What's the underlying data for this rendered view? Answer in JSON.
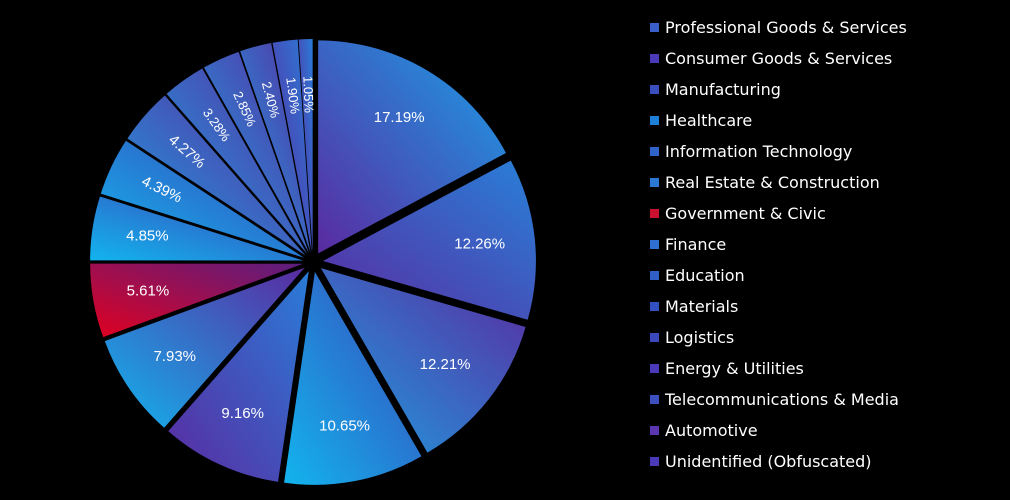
{
  "chart_data": {
    "type": "pie",
    "title": "",
    "legend_position": "right",
    "slice_labels_shown_as": "percent",
    "categories": [
      "Professional Goods & Services",
      "Consumer Goods & Services",
      "Manufacturing",
      "Healthcare",
      "Information Technology",
      "Real Estate & Construction",
      "Government & Civic",
      "Finance",
      "Education",
      "Materials",
      "Logistics",
      "Energy & Utilities",
      "Telecommunications & Media",
      "Automotive",
      "Unidentified (Obfuscated)"
    ],
    "values": [
      17.19,
      12.26,
      12.21,
      10.65,
      9.16,
      7.93,
      5.61,
      4.85,
      4.39,
      4.27,
      3.28,
      2.85,
      2.4,
      1.9,
      1.05
    ],
    "labels": [
      "17.19%",
      "12.26%",
      "12.21%",
      "10.65%",
      "9.16%",
      "7.93%",
      "5.61%",
      "4.85%",
      "4.39%",
      "4.27%",
      "3.28%",
      "2.85%",
      "2.40%",
      "1.90%",
      "1.05%"
    ],
    "colors": [
      "#3a5fc8",
      "#4a3ab8",
      "#3a4fbf",
      "#1e7fd8",
      "#2f63c9",
      "#2b78d2",
      "#cc1030",
      "#2f6fcf",
      "#2f5fc6",
      "#3350c0",
      "#3a48bc",
      "#4a3aba",
      "#3b4fbe",
      "#5a36b0",
      "#4a3ab8"
    ],
    "gradient_start_colors": [
      "#5a2aa0",
      "#5a2aa0",
      "#1e9fe0",
      "#12b4ee",
      "#5a2aa0",
      "#12b4ee",
      "#e00020",
      "#12b4ee",
      "#12b4ee",
      "#1e9fe0",
      "#1e9fe0",
      "#1e9fe0",
      "#1e9fe0",
      "#5a2aa0",
      "#5a2aa0"
    ],
    "gradient_end_colors": [
      "#1aa0e8",
      "#2880d8",
      "#5a2aa0",
      "#3a46b8",
      "#2a7cd8",
      "#5a2aa0",
      "#5a1e80",
      "#3a46b8",
      "#3a46b8",
      "#5a2aa0",
      "#5a2aa0",
      "#5a2aa0",
      "#5a2aa0",
      "#2a7cd8",
      "#2a7cd8"
    ],
    "label_color": "#ffffff"
  }
}
